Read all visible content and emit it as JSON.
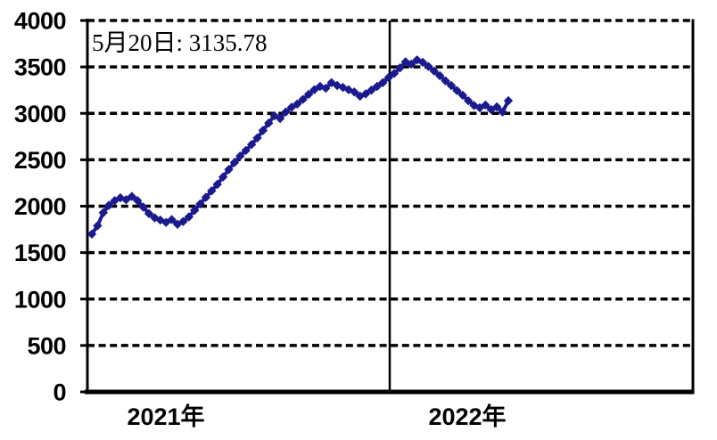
{
  "chart_data": {
    "type": "line",
    "title": "",
    "annotation": "5月20日: 3135.78",
    "latest_point": {
      "date_label": "5月20日",
      "value": 3135.78
    },
    "xlabel": "",
    "ylabel": "",
    "ylim": [
      0,
      4000
    ],
    "ytick_step": 500,
    "yticks": [
      "0",
      "500",
      "1000",
      "1500",
      "2000",
      "2500",
      "3000",
      "3500",
      "4000"
    ],
    "x_groups": [
      {
        "label": "2021年",
        "start_index": 0
      },
      {
        "label": "2022年",
        "start_index": 52
      }
    ],
    "grid": "horizontal-dashed-black",
    "legend": "none",
    "colors": {
      "series": "#1b1b8f",
      "grid": "#000000",
      "axis": "#000000"
    },
    "series": [
      {
        "marker": "diamond",
        "color": "#1b1b8f",
        "values": [
          1700,
          1790,
          1930,
          2010,
          2060,
          2090,
          2070,
          2105,
          2060,
          1990,
          1920,
          1875,
          1850,
          1825,
          1855,
          1805,
          1835,
          1885,
          1955,
          2025,
          2095,
          2165,
          2235,
          2315,
          2395,
          2470,
          2540,
          2600,
          2665,
          2735,
          2815,
          2895,
          2975,
          2945,
          3015,
          3065,
          3100,
          3150,
          3205,
          3255,
          3290,
          3270,
          3330,
          3300,
          3280,
          3255,
          3230,
          3185,
          3210,
          3250,
          3290,
          3330,
          3385,
          3430,
          3490,
          3555,
          3530,
          3575,
          3550,
          3505,
          3455,
          3405,
          3350,
          3300,
          3245,
          3195,
          3135,
          3085,
          3060,
          3090,
          3040,
          3070,
          3015,
          3135.78
        ]
      }
    ]
  }
}
